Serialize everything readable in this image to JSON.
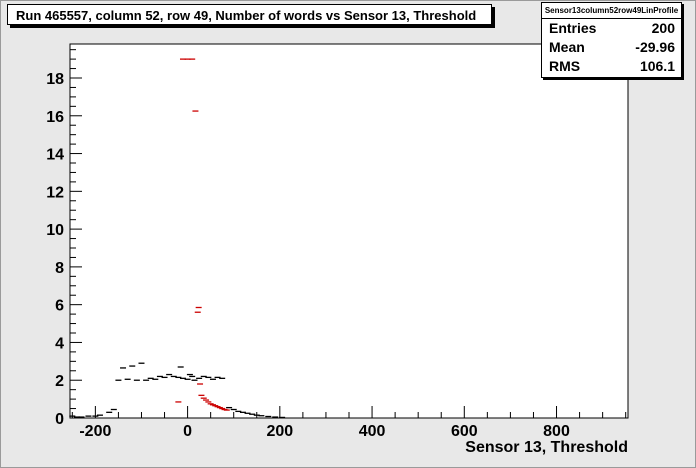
{
  "title": "Run 465557, column 52, row 49, Number of words vs Sensor 13, Threshold",
  "stats": {
    "name": "Sensor13column52row49LinProfile",
    "entries_label": "Entries",
    "entries_value": "200",
    "mean_label": "Mean",
    "mean_value": "-29.96",
    "rms_label": "RMS",
    "rms_value": "106.1"
  },
  "colors": {
    "background": "#e8e8e8",
    "frame_fill": "#ffffff",
    "series_black": "#000000",
    "series_red": "#cc0000"
  },
  "chart_data": {
    "type": "scatter",
    "title": "Run 465557, column 52, row 49, Number of words vs Sensor 13, Threshold",
    "xlabel": "Sensor 13, Threshold",
    "ylabel": "",
    "xlim": [
      -255,
      955
    ],
    "ylim": [
      0,
      19.8
    ],
    "xticks": [
      -200,
      0,
      200,
      400,
      600,
      800
    ],
    "xtick_labels": [
      "-200",
      "0",
      "200",
      "400",
      "600",
      "800"
    ],
    "yticks": [
      0,
      2,
      4,
      6,
      8,
      10,
      12,
      14,
      16,
      18
    ],
    "ytick_labels": [
      "0",
      "2",
      "4",
      "6",
      "8",
      "10",
      "12",
      "14",
      "16",
      "18"
    ],
    "grid": false,
    "legend": "none",
    "series": [
      {
        "color": "#000000",
        "points": [
          {
            "x": -250,
            "y": 0.1
          },
          {
            "x": -240,
            "y": 0.05
          },
          {
            "x": -230,
            "y": 0.05
          },
          {
            "x": -215,
            "y": 0.1
          },
          {
            "x": -200,
            "y": 0.1
          },
          {
            "x": -190,
            "y": 0.15
          },
          {
            "x": -170,
            "y": 0.3
          },
          {
            "x": -160,
            "y": 0.45
          },
          {
            "x": -150,
            "y": 2.0
          },
          {
            "x": -140,
            "y": 2.65
          },
          {
            "x": -130,
            "y": 2.05
          },
          {
            "x": -120,
            "y": 2.75
          },
          {
            "x": -110,
            "y": 2.0
          },
          {
            "x": -100,
            "y": 2.9
          },
          {
            "x": -90,
            "y": 2.0
          },
          {
            "x": -80,
            "y": 2.1
          },
          {
            "x": -70,
            "y": 2.05
          },
          {
            "x": -60,
            "y": 2.2
          },
          {
            "x": -50,
            "y": 2.15
          },
          {
            "x": -40,
            "y": 2.3
          },
          {
            "x": -30,
            "y": 2.2
          },
          {
            "x": -20,
            "y": 2.15
          },
          {
            "x": -15,
            "y": 2.7
          },
          {
            "x": -10,
            "y": 2.1
          },
          {
            "x": 0,
            "y": 2.05
          },
          {
            "x": 5,
            "y": 2.3
          },
          {
            "x": 10,
            "y": 2.2
          },
          {
            "x": 15,
            "y": 2.0
          },
          {
            "x": 25,
            "y": 2.1
          },
          {
            "x": 35,
            "y": 2.2
          },
          {
            "x": 45,
            "y": 2.15
          },
          {
            "x": 55,
            "y": 2.05
          },
          {
            "x": 65,
            "y": 2.15
          },
          {
            "x": 75,
            "y": 2.1
          },
          {
            "x": 90,
            "y": 0.55
          },
          {
            "x": 100,
            "y": 0.45
          },
          {
            "x": 110,
            "y": 0.35
          },
          {
            "x": 120,
            "y": 0.3
          },
          {
            "x": 130,
            "y": 0.25
          },
          {
            "x": 140,
            "y": 0.2
          },
          {
            "x": 150,
            "y": 0.15
          },
          {
            "x": 160,
            "y": 0.12
          },
          {
            "x": 175,
            "y": 0.08
          },
          {
            "x": 190,
            "y": 0.05
          },
          {
            "x": 205,
            "y": 0.03
          }
        ]
      },
      {
        "color": "#cc0000",
        "points": [
          {
            "x": -20,
            "y": 0.85
          },
          {
            "x": -10,
            "y": 19.0
          },
          {
            "x": 0,
            "y": 19.0
          },
          {
            "x": 10,
            "y": 19.0
          },
          {
            "x": 17,
            "y": 16.25
          },
          {
            "x": 22,
            "y": 5.6
          },
          {
            "x": 24,
            "y": 5.85
          },
          {
            "x": 27,
            "y": 1.8
          },
          {
            "x": 30,
            "y": 1.2
          },
          {
            "x": 35,
            "y": 1.05
          },
          {
            "x": 40,
            "y": 0.95
          },
          {
            "x": 45,
            "y": 0.85
          },
          {
            "x": 50,
            "y": 0.75
          },
          {
            "x": 55,
            "y": 0.7
          },
          {
            "x": 60,
            "y": 0.65
          },
          {
            "x": 65,
            "y": 0.6
          },
          {
            "x": 70,
            "y": 0.55
          },
          {
            "x": 75,
            "y": 0.5
          },
          {
            "x": 80,
            "y": 0.45
          },
          {
            "x": 85,
            "y": 0.42
          }
        ]
      }
    ]
  }
}
